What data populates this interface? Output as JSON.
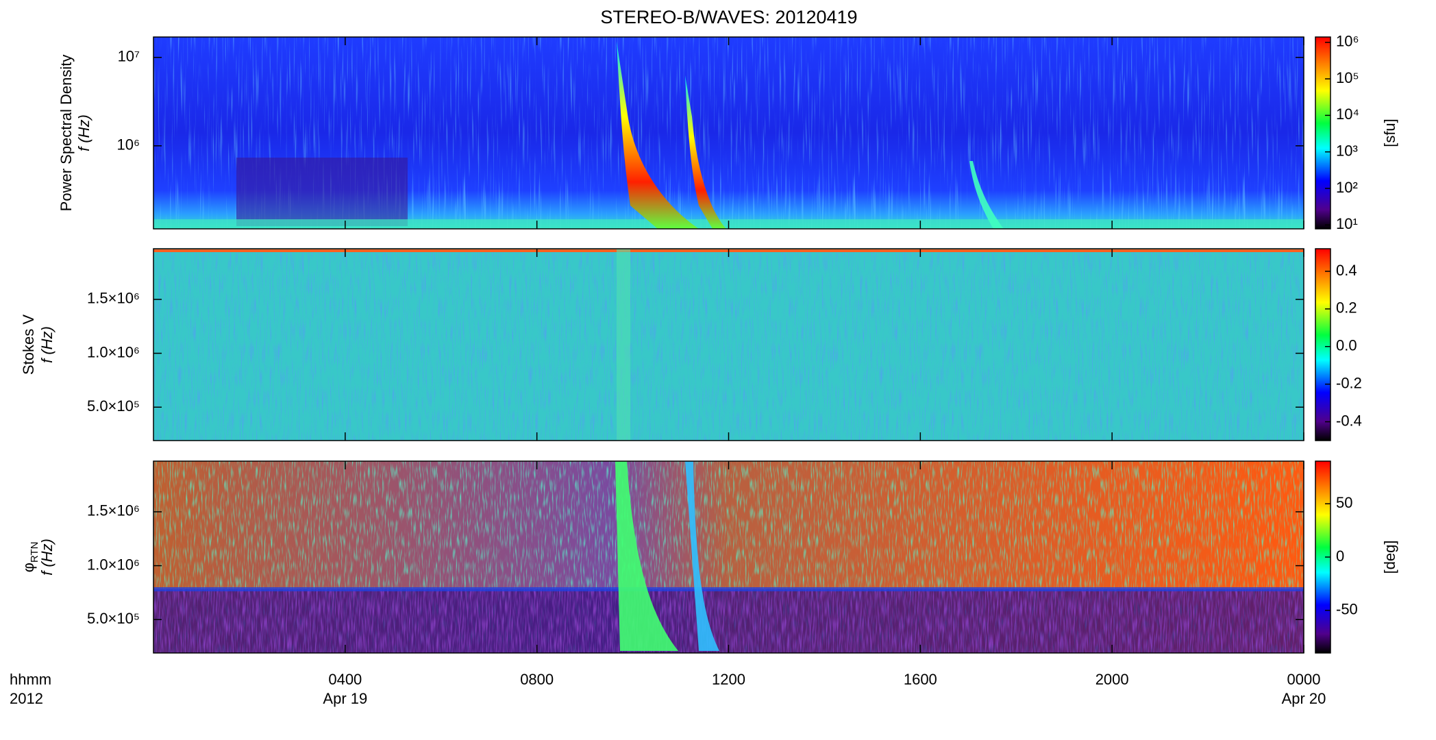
{
  "chart_data": [
    {
      "type": "heatmap",
      "title": "STEREO-B/WAVES: 20120419",
      "quantity": "Power Spectral Density",
      "ylabel": "f (Hz)",
      "xlim": [
        0,
        24
      ],
      "log_y": true,
      "ylim": [
        115000,
        17000000
      ],
      "yticks": [
        {
          "value": 1000000,
          "label": "10⁶"
        },
        {
          "value": 10000000,
          "label": "10⁷"
        }
      ],
      "colorbar": {
        "log": true,
        "lim": [
          7.8,
          1400000
        ],
        "label": "[sfu]",
        "ticks": [
          {
            "value": 10,
            "label": "10¹"
          },
          {
            "value": 100,
            "label": "10²"
          },
          {
            "value": 1000,
            "label": "10³"
          },
          {
            "value": 10000,
            "label": "10⁴"
          },
          {
            "value": 100000,
            "label": "10⁵"
          },
          {
            "value": 1000000,
            "label": "10⁶"
          }
        ]
      }
    },
    {
      "type": "heatmap",
      "quantity": "Stokes V",
      "ylabel": "f (Hz)",
      "xlim": [
        0,
        24
      ],
      "log_y": false,
      "ylim": [
        190000,
        1970000
      ],
      "yticks": [
        {
          "value": 500000,
          "label": "5.0×10⁵"
        },
        {
          "value": 1000000,
          "label": "1.0×10⁶"
        },
        {
          "value": 1500000,
          "label": "1.5×10⁶"
        }
      ],
      "colorbar": {
        "log": false,
        "lim": [
          -0.5,
          0.52
        ],
        "ticks": [
          -0.4,
          -0.2,
          {
            "value": 0,
            "label": "0.0"
          },
          0.2,
          0.4
        ]
      }
    },
    {
      "type": "heatmap",
      "quantity": "φ",
      "quantity_subscript": "RTN",
      "ylabel": "f (Hz)",
      "xlim": [
        0,
        24
      ],
      "log_y": false,
      "ylim": [
        190000,
        1970000
      ],
      "yticks": [
        {
          "value": 500000,
          "label": "5.0×10⁵"
        },
        {
          "value": 1000000,
          "label": "1.0×10⁶"
        },
        {
          "value": 1500000,
          "label": "1.5×10⁶"
        }
      ],
      "colorbar": {
        "log": false,
        "lim": [
          -90,
          90
        ],
        "label": "[deg]",
        "ticks": [
          -50,
          0,
          50
        ]
      },
      "xlabel": "hhmm",
      "year": "2012",
      "xticks": [
        {
          "value": 4,
          "label": "0400"
        },
        {
          "value": 8,
          "label": "0800"
        },
        {
          "value": 12,
          "label": "1200"
        },
        {
          "value": 16,
          "label": "1600"
        },
        {
          "value": 20,
          "label": "2000"
        },
        {
          "value": 24,
          "label": "0000"
        }
      ],
      "date_labels": [
        {
          "value": 4,
          "label": "Apr 19"
        },
        {
          "value": 24,
          "label": "Apr 20"
        }
      ]
    }
  ]
}
